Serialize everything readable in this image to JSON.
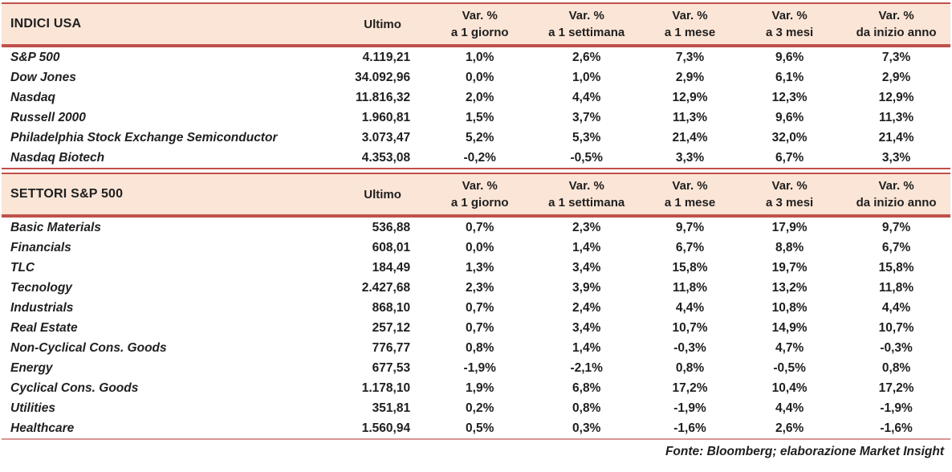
{
  "columns": {
    "last_label": "Ultimo",
    "var_label": "Var. %",
    "periods": [
      "a 1 giorno",
      "a 1 settimana",
      "a 1 mese",
      "a 3 mesi",
      "da inizio anno"
    ]
  },
  "tables": [
    {
      "title": "INDICI USA",
      "rows": [
        {
          "name": "S&P 500",
          "last": "4.119,21",
          "changes": [
            "1,0%",
            "2,6%",
            "7,3%",
            "9,6%",
            "7,3%"
          ]
        },
        {
          "name": "Dow Jones",
          "last": "34.092,96",
          "changes": [
            "0,0%",
            "1,0%",
            "2,9%",
            "6,1%",
            "2,9%"
          ]
        },
        {
          "name": "Nasdaq",
          "last": "11.816,32",
          "changes": [
            "2,0%",
            "4,4%",
            "12,9%",
            "12,3%",
            "12,9%"
          ]
        },
        {
          "name": "Russell 2000",
          "last": "1.960,81",
          "changes": [
            "1,5%",
            "3,7%",
            "11,3%",
            "9,6%",
            "11,3%"
          ]
        },
        {
          "name": "Philadelphia Stock Exchange Semiconductor",
          "last": "3.073,47",
          "changes": [
            "5,2%",
            "5,3%",
            "21,4%",
            "32,0%",
            "21,4%"
          ]
        },
        {
          "name": "Nasdaq Biotech",
          "last": "4.353,08",
          "changes": [
            "-0,2%",
            "-0,5%",
            "3,3%",
            "6,7%",
            "3,3%"
          ]
        }
      ]
    },
    {
      "title": "SETTORI S&P 500",
      "rows": [
        {
          "name": "Basic Materials",
          "last": "536,88",
          "changes": [
            "0,7%",
            "2,3%",
            "9,7%",
            "17,9%",
            "9,7%"
          ]
        },
        {
          "name": "Financials",
          "last": "608,01",
          "changes": [
            "0,0%",
            "1,4%",
            "6,7%",
            "8,8%",
            "6,7%"
          ]
        },
        {
          "name": "TLC",
          "last": "184,49",
          "changes": [
            "1,3%",
            "3,4%",
            "15,8%",
            "19,7%",
            "15,8%"
          ]
        },
        {
          "name": "Tecnology",
          "last": "2.427,68",
          "changes": [
            "2,3%",
            "3,9%",
            "11,8%",
            "13,2%",
            "11,8%"
          ]
        },
        {
          "name": "Industrials",
          "last": "868,10",
          "changes": [
            "0,7%",
            "2,4%",
            "4,4%",
            "10,8%",
            "4,4%"
          ]
        },
        {
          "name": "Real Estate",
          "last": "257,12",
          "changes": [
            "0,7%",
            "3,4%",
            "10,7%",
            "14,9%",
            "10,7%"
          ]
        },
        {
          "name": "Non-Cyclical Cons. Goods",
          "last": "776,77",
          "changes": [
            "0,8%",
            "1,4%",
            "-0,3%",
            "4,7%",
            "-0,3%"
          ]
        },
        {
          "name": "Energy",
          "last": "677,53",
          "changes": [
            "-1,9%",
            "-2,1%",
            "0,8%",
            "-0,5%",
            "0,8%"
          ]
        },
        {
          "name": "Cyclical Cons. Goods",
          "last": "1.178,10",
          "changes": [
            "1,9%",
            "6,8%",
            "17,2%",
            "10,4%",
            "17,2%"
          ]
        },
        {
          "name": "Utilities",
          "last": "351,81",
          "changes": [
            "0,2%",
            "0,8%",
            "-1,9%",
            "4,4%",
            "-1,9%"
          ]
        },
        {
          "name": "Healthcare",
          "last": "1.560,94",
          "changes": [
            "0,5%",
            "0,3%",
            "-1,6%",
            "2,6%",
            "-1,6%"
          ]
        }
      ]
    }
  ],
  "footer": {
    "source_note": "Fonte: Bloomberg; elaborazione Market Insight"
  },
  "colors": {
    "header_bg": "#FBE5D6",
    "rule": "#BF514B",
    "rule_light": "#D99694",
    "text": "#1F1F1F"
  }
}
